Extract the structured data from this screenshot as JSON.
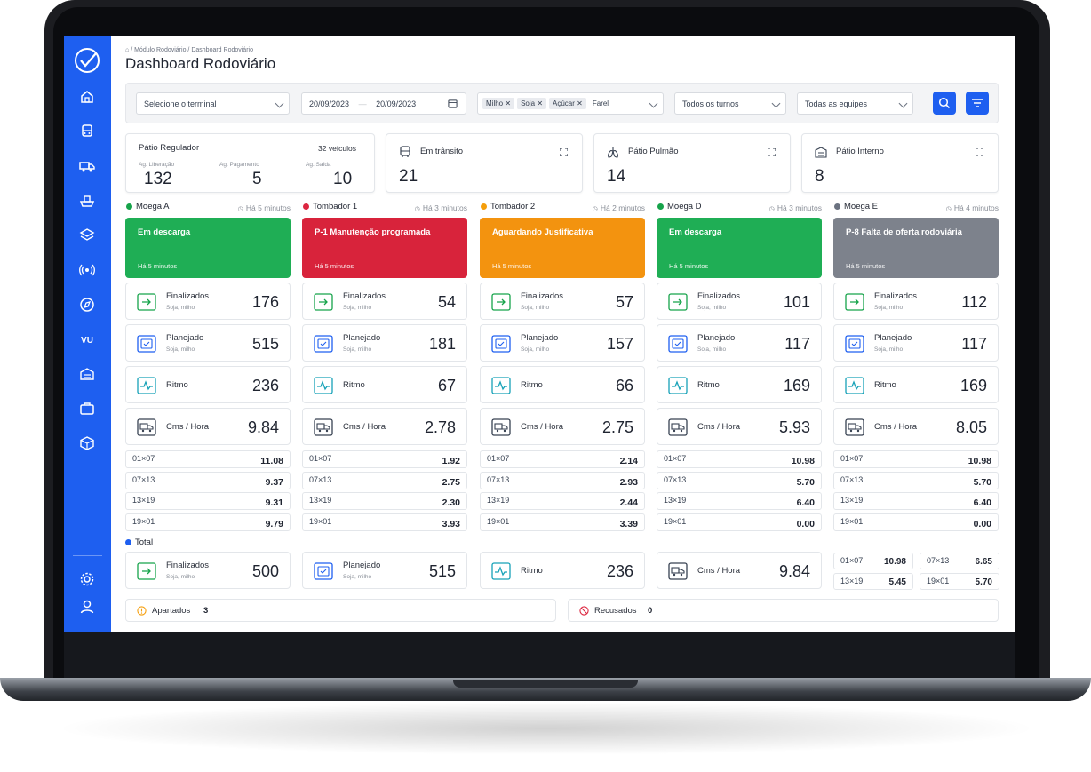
{
  "breadcrumb": {
    "level1": "Módulo Rodoviário",
    "level2": "Dashboard Rodoviário",
    "sep": "/"
  },
  "page_title": "Dashboard Rodoviário",
  "filters": {
    "terminal": "Selecione o terminal",
    "date_from": "20/09/2023",
    "date_sep": "—",
    "date_to": "20/09/2023",
    "products": [
      "Milho",
      "Soja",
      "Açúcar",
      "Farel"
    ],
    "turnos": "Todos os turnos",
    "equipes": "Todas as equipes"
  },
  "summary": {
    "patio_regulador": {
      "title": "Pátio Regulador",
      "count": "32 veículos",
      "stats": [
        {
          "label": "Ag. Liberação",
          "value": "132"
        },
        {
          "label": "Ag. Pagamento",
          "value": "5"
        },
        {
          "label": "Ag. Saída",
          "value": "10"
        }
      ]
    },
    "cards": [
      {
        "title": "Em trânsito",
        "value": "21",
        "icon": "bus-icon"
      },
      {
        "title": "Pátio Pulmão",
        "value": "14",
        "icon": "lungs-icon"
      },
      {
        "title": "Pátio Interno",
        "value": "8",
        "icon": "warehouse-icon"
      }
    ]
  },
  "columns": [
    {
      "name": "Moega A",
      "dot": "#16a34a",
      "ago": "Há 5 minutos",
      "status": "Em descarga",
      "status_ago": "Há 5 minutos",
      "status_color": "green",
      "finalizados": "176",
      "planejado": "515",
      "ritmo": "236",
      "cms": "9.84",
      "shifts": [
        {
          "l": "01×07",
          "v": "11.08"
        },
        {
          "l": "07×13",
          "v": "9.37"
        },
        {
          "l": "13×19",
          "v": "9.31"
        },
        {
          "l": "19×01",
          "v": "9.79"
        }
      ]
    },
    {
      "name": "Tombador 1",
      "dot": "#dc2640",
      "ago": "Há 3 minutos",
      "status": "P-1 Manutenção programada",
      "status_ago": "Há 5 minutos",
      "status_color": "red",
      "finalizados": "54",
      "planejado": "181",
      "ritmo": "67",
      "cms": "2.78",
      "shifts": [
        {
          "l": "01×07",
          "v": "1.92"
        },
        {
          "l": "07×13",
          "v": "2.75"
        },
        {
          "l": "13×19",
          "v": "2.30"
        },
        {
          "l": "19×01",
          "v": "3.93"
        }
      ]
    },
    {
      "name": "Tombador 2",
      "dot": "#f59e0b",
      "ago": "Há 2 minutos",
      "status": "Aguardando Justificativa",
      "status_ago": "Há 5 minutos",
      "status_color": "orange",
      "finalizados": "57",
      "planejado": "157",
      "ritmo": "66",
      "cms": "2.75",
      "shifts": [
        {
          "l": "01×07",
          "v": "2.14"
        },
        {
          "l": "07×13",
          "v": "2.93"
        },
        {
          "l": "13×19",
          "v": "2.44"
        },
        {
          "l": "19×01",
          "v": "3.39"
        }
      ]
    },
    {
      "name": "Moega D",
      "dot": "#16a34a",
      "ago": "Há 3 minutos",
      "status": "Em descarga",
      "status_ago": "Há 5 minutos",
      "status_color": "green",
      "finalizados": "101",
      "planejado": "117",
      "ritmo": "169",
      "cms": "5.93",
      "shifts": [
        {
          "l": "01×07",
          "v": "10.98"
        },
        {
          "l": "07×13",
          "v": "5.70"
        },
        {
          "l": "13×19",
          "v": "6.40"
        },
        {
          "l": "19×01",
          "v": "0.00"
        }
      ]
    },
    {
      "name": "Moega E",
      "dot": "#6b7280",
      "ago": "Há 4 minutos",
      "status": "P-8 Falta de oferta rodoviária",
      "status_ago": "Há 5 minutos",
      "status_color": "gray",
      "finalizados": "112",
      "planejado": "117",
      "ritmo": "169",
      "cms": "8.05",
      "shifts": [
        {
          "l": "01×07",
          "v": "10.98"
        },
        {
          "l": "07×13",
          "v": "5.70"
        },
        {
          "l": "13×19",
          "v": "6.40"
        },
        {
          "l": "19×01",
          "v": "0.00"
        }
      ]
    }
  ],
  "labels": {
    "finalizados": "Finalizados",
    "planejado": "Planejado",
    "ritmo": "Ritmo",
    "cms": "Cms / Hora",
    "sub": "Soja, milho"
  },
  "total": {
    "title": "Total",
    "finalizados": "500",
    "planejado": "515",
    "ritmo": "236",
    "cms": "9.84",
    "shifts": [
      {
        "l": "01×07",
        "v": "10.98"
      },
      {
        "l": "07×13",
        "v": "6.65"
      },
      {
        "l": "13×19",
        "v": "5.45"
      },
      {
        "l": "19×01",
        "v": "5.70"
      }
    ]
  },
  "apartados": {
    "label": "Apartados",
    "value": "3"
  },
  "recusados": {
    "label": "Recusados",
    "value": "0"
  },
  "colors": {
    "blue": "#1e5ff0",
    "green": "#1fae55",
    "red": "#d8233b",
    "orange": "#f3930f",
    "gray": "#7d828c"
  }
}
